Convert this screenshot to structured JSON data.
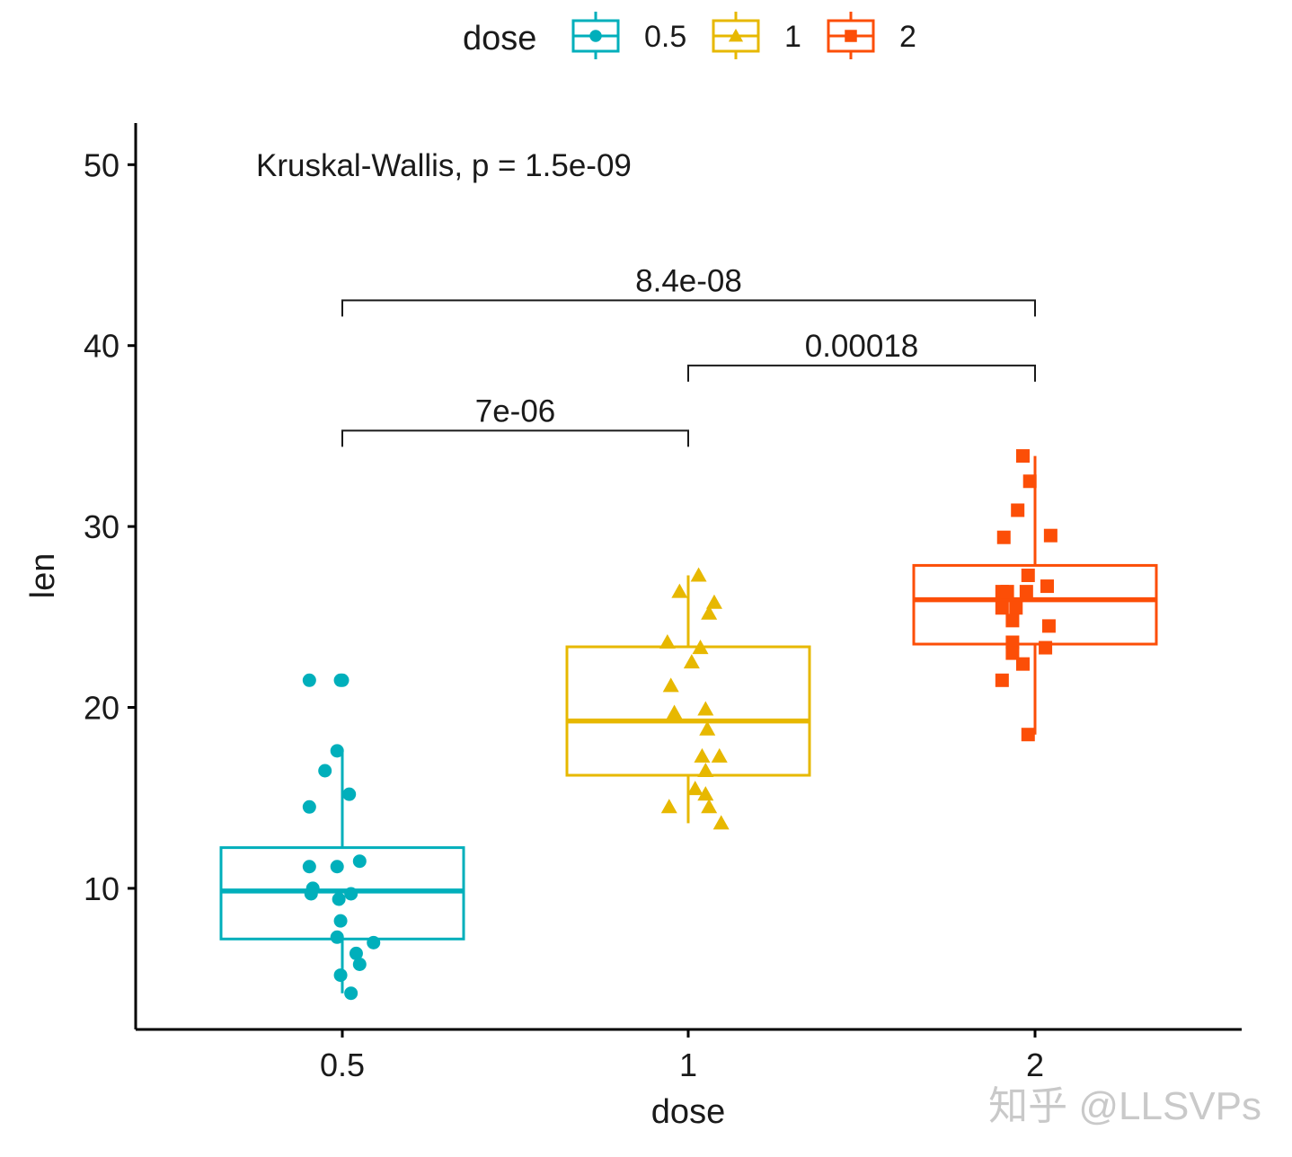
{
  "chart_data": {
    "type": "box",
    "categories": [
      "0.5",
      "1",
      "2"
    ],
    "xlabel": "dose",
    "ylabel": "len",
    "ylim": [
      2.2,
      52.3
    ],
    "yticks": [
      10,
      20,
      30,
      40,
      50
    ],
    "grid": false,
    "legend": {
      "title": "dose",
      "position": "top",
      "entries": [
        "0.5",
        "1",
        "2"
      ]
    },
    "colors": {
      "0.5": "#00AFBB",
      "1": "#E7B800",
      "2": "#FC4E07"
    },
    "markers": {
      "0.5": "circle",
      "1": "triangle",
      "2": "square"
    },
    "series": [
      {
        "name": "0.5",
        "stats": {
          "min": 4.2,
          "q1": 7.2,
          "median": 9.85,
          "q3": 12.25,
          "max": 17.6
        },
        "points": [
          {
            "x": -0.19,
            "y": 21.5
          },
          {
            "x": -0.01,
            "y": 21.5
          },
          {
            "x": 0.0,
            "y": 21.5
          },
          {
            "x": -0.03,
            "y": 17.6
          },
          {
            "x": -0.1,
            "y": 16.5
          },
          {
            "x": 0.04,
            "y": 15.2
          },
          {
            "x": -0.19,
            "y": 14.5
          },
          {
            "x": 0.1,
            "y": 11.5
          },
          {
            "x": -0.19,
            "y": 11.2
          },
          {
            "x": -0.03,
            "y": 11.2
          },
          {
            "x": -0.17,
            "y": 10.0
          },
          {
            "x": -0.18,
            "y": 9.7
          },
          {
            "x": 0.05,
            "y": 9.7
          },
          {
            "x": -0.02,
            "y": 9.4
          },
          {
            "x": -0.01,
            "y": 8.2
          },
          {
            "x": -0.03,
            "y": 7.3
          },
          {
            "x": 0.18,
            "y": 7.0
          },
          {
            "x": 0.08,
            "y": 6.4
          },
          {
            "x": 0.1,
            "y": 5.8
          },
          {
            "x": -0.01,
            "y": 5.2
          },
          {
            "x": 0.05,
            "y": 4.2
          }
        ]
      },
      {
        "name": "1",
        "stats": {
          "min": 13.6,
          "q1": 16.25,
          "median": 19.25,
          "q3": 23.35,
          "max": 27.3
        },
        "points": [
          {
            "x": 0.06,
            "y": 27.3
          },
          {
            "x": -0.05,
            "y": 26.4
          },
          {
            "x": 0.15,
            "y": 25.8
          },
          {
            "x": 0.12,
            "y": 25.2
          },
          {
            "x": -0.12,
            "y": 23.6
          },
          {
            "x": 0.07,
            "y": 23.3
          },
          {
            "x": 0.02,
            "y": 22.5
          },
          {
            "x": -0.1,
            "y": 21.2
          },
          {
            "x": -0.08,
            "y": 19.7
          },
          {
            "x": 0.1,
            "y": 19.9
          },
          {
            "x": 0.11,
            "y": 18.8
          },
          {
            "x": 0.08,
            "y": 17.3
          },
          {
            "x": 0.18,
            "y": 17.3
          },
          {
            "x": 0.1,
            "y": 16.5
          },
          {
            "x": 0.04,
            "y": 15.5
          },
          {
            "x": 0.1,
            "y": 15.2
          },
          {
            "x": -0.11,
            "y": 14.5
          },
          {
            "x": 0.12,
            "y": 14.5
          },
          {
            "x": 0.19,
            "y": 13.6
          }
        ]
      },
      {
        "name": "2",
        "stats": {
          "min": 18.5,
          "q1": 23.5,
          "median": 25.95,
          "q3": 27.85,
          "max": 33.9
        },
        "points": [
          {
            "x": -0.07,
            "y": 33.9
          },
          {
            "x": -0.03,
            "y": 32.5
          },
          {
            "x": -0.1,
            "y": 30.9
          },
          {
            "x": -0.18,
            "y": 29.4
          },
          {
            "x": 0.09,
            "y": 29.5
          },
          {
            "x": -0.04,
            "y": 27.3
          },
          {
            "x": 0.07,
            "y": 26.7
          },
          {
            "x": -0.19,
            "y": 26.4
          },
          {
            "x": -0.16,
            "y": 26.4
          },
          {
            "x": -0.05,
            "y": 26.4
          },
          {
            "x": -0.19,
            "y": 25.5
          },
          {
            "x": -0.11,
            "y": 25.5
          },
          {
            "x": -0.13,
            "y": 24.8
          },
          {
            "x": 0.08,
            "y": 24.5
          },
          {
            "x": -0.13,
            "y": 23.6
          },
          {
            "x": 0.06,
            "y": 23.3
          },
          {
            "x": -0.13,
            "y": 23.0
          },
          {
            "x": -0.07,
            "y": 22.4
          },
          {
            "x": -0.19,
            "y": 21.5
          },
          {
            "x": -0.04,
            "y": 18.5
          }
        ]
      }
    ],
    "annotations": {
      "global_test": "Kruskal-Wallis, p = 1.5e-09",
      "comparisons": [
        {
          "from": "0.5",
          "to": "1",
          "label": "7e-06",
          "y": 35.3
        },
        {
          "from": "1",
          "to": "2",
          "label": "0.00018",
          "y": 38.9
        },
        {
          "from": "0.5",
          "to": "2",
          "label": "8.4e-08",
          "y": 42.5
        }
      ]
    }
  },
  "watermark": "知乎 @LLSVPs"
}
